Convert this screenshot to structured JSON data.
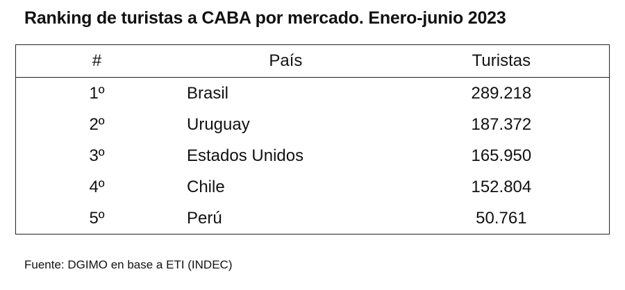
{
  "header": {
    "title": "Ranking de turistas a CABA por mercado. Enero-junio 2023"
  },
  "table": {
    "columns": [
      "#",
      "País",
      "Turistas"
    ],
    "rows": [
      [
        "1º",
        "Brasil",
        "289.218"
      ],
      [
        "2º",
        "Uruguay",
        "187.372"
      ],
      [
        "3º",
        "Estados Unidos",
        "165.950"
      ],
      [
        "4º",
        "Chile",
        "152.804"
      ],
      [
        "5º",
        "Perú",
        "50.761"
      ]
    ]
  },
  "footer": "Fuente: DGIMO en base a ETI (INDEC)"
}
